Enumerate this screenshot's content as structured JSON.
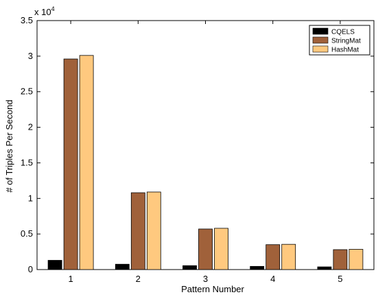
{
  "chart_data": {
    "type": "bar",
    "categories": [
      "1",
      "2",
      "3",
      "4",
      "5"
    ],
    "series": [
      {
        "name": "CQELS",
        "color": "#000000",
        "values": [
          1300,
          750,
          550,
          450,
          380
        ]
      },
      {
        "name": "StringMat",
        "color": "#a0613a",
        "values": [
          29600,
          10800,
          5700,
          3500,
          2800
        ]
      },
      {
        "name": "HashMat",
        "color": "#ffc97f",
        "values": [
          30100,
          10900,
          5800,
          3550,
          2850
        ]
      }
    ],
    "xlabel": "Pattern Number",
    "ylabel": "# of Triples Per Second",
    "ylim": [
      0,
      35000
    ],
    "y_ticks": [
      0,
      5000,
      10000,
      15000,
      20000,
      25000,
      30000,
      35000
    ],
    "y_tick_labels": [
      "0",
      "0.5",
      "1",
      "1.5",
      "2",
      "2.5",
      "3",
      "3.5"
    ],
    "y_scale_base": "x 10",
    "y_scale_exp": "4",
    "legend_position": "top-right",
    "grid": false
  }
}
